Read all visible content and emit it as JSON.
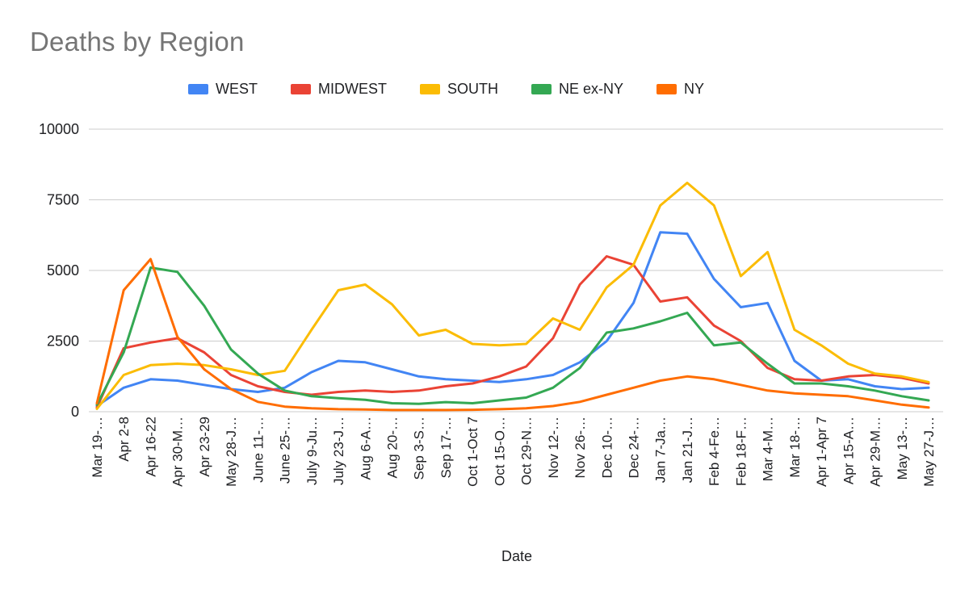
{
  "chart_data": {
    "type": "line",
    "title": "Deaths by Region",
    "xlabel": "Date",
    "ylabel": "",
    "ylim": [
      0,
      10000
    ],
    "y_ticks": [
      0,
      2500,
      5000,
      7500,
      10000
    ],
    "grid": true,
    "legend_position": "top",
    "categories": [
      "Mar 19-…",
      "Apr 2-8",
      "Apr 16-22",
      "Apr 30-M…",
      "Apr 23-29",
      "May 28-J…",
      "June 11-…",
      "June 25-…",
      "July 9-Ju…",
      "July 23-J…",
      "Aug 6-A…",
      "Aug 20-…",
      "Sep 3-S…",
      "Sep 17-…",
      "Oct 1-Oct 7",
      "Oct 15-O…",
      "Oct 29-N…",
      "Nov 12-…",
      "Nov 26-…",
      "Dec 10-…",
      "Dec 24-…",
      "Jan 7-Ja…",
      "Jan 21-J…",
      "Feb 4-Fe…",
      "Feb 18-F…",
      "Mar 4-M…",
      "Mar 18-…",
      "Apr 1-Apr 7",
      "Apr 15-A…",
      "Apr 29-M…",
      "May 13-…",
      "May 27-J…"
    ],
    "series": [
      {
        "name": "WEST",
        "color": "#4285f4",
        "values": [
          200,
          850,
          1150,
          1100,
          950,
          800,
          700,
          850,
          1400,
          1800,
          1750,
          1500,
          1250,
          1150,
          1100,
          1050,
          1150,
          1300,
          1750,
          2500,
          3850,
          6350,
          6300,
          4700,
          3700,
          3850,
          1800,
          1100,
          1150,
          900,
          800,
          850
        ]
      },
      {
        "name": "MIDWEST",
        "color": "#ea4335",
        "values": [
          150,
          2250,
          2450,
          2600,
          2100,
          1300,
          900,
          700,
          600,
          700,
          750,
          700,
          750,
          900,
          1000,
          1250,
          1600,
          2600,
          4500,
          5500,
          5200,
          3900,
          4050,
          3050,
          2500,
          1550,
          1150,
          1100,
          1250,
          1300,
          1200,
          1000
        ]
      },
      {
        "name": "SOUTH",
        "color": "#fbbc04",
        "values": [
          100,
          1300,
          1650,
          1700,
          1650,
          1500,
          1300,
          1450,
          2900,
          4300,
          4500,
          3800,
          2700,
          2900,
          2400,
          2350,
          2400,
          3300,
          2900,
          4400,
          5200,
          7300,
          8100,
          7300,
          4800,
          5650,
          2900,
          2350,
          1700,
          1350,
          1250,
          1050
        ]
      },
      {
        "name": "NE ex-NY",
        "color": "#34a853",
        "values": [
          250,
          2100,
          5100,
          4950,
          3750,
          2200,
          1350,
          750,
          550,
          480,
          420,
          300,
          280,
          340,
          300,
          400,
          500,
          850,
          1550,
          2800,
          2950,
          3200,
          3500,
          2350,
          2450,
          1700,
          1000,
          1000,
          900,
          750,
          550,
          400
        ]
      },
      {
        "name": "NY",
        "color": "#ff6d01",
        "values": [
          300,
          4300,
          5400,
          2650,
          1500,
          800,
          350,
          180,
          120,
          90,
          80,
          60,
          60,
          60,
          70,
          90,
          120,
          200,
          350,
          600,
          850,
          1100,
          1250,
          1150,
          950,
          750,
          650,
          600,
          550,
          400,
          250,
          150
        ]
      }
    ]
  }
}
